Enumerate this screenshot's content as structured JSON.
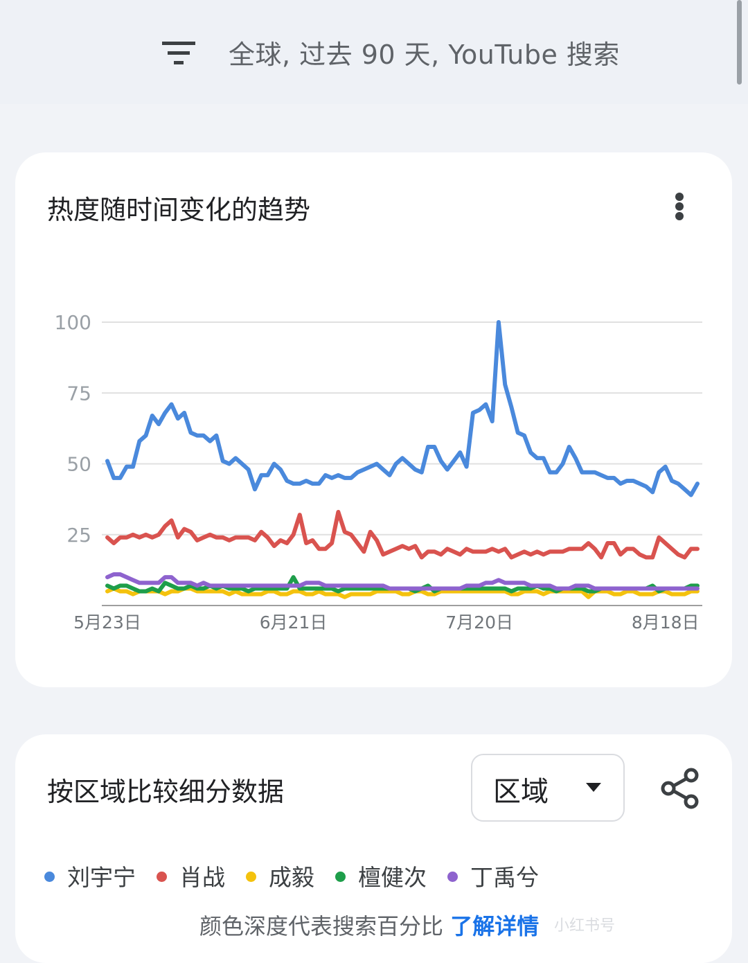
{
  "filter_bar": {
    "icon": "filter-icon",
    "text": "全球, 过去 90 天, YouTube 搜索"
  },
  "trend_card": {
    "title": "热度随时间变化的趋势",
    "menu_icon": "more-vert-icon"
  },
  "region_card": {
    "title": "按区域比较细分数据",
    "dropdown_value": "区域",
    "share_icon": "share-icon",
    "footnote_text": "颜色深度代表搜索百分比",
    "footnote_link": "了解详情"
  },
  "chart_data": {
    "type": "line",
    "yticks": [
      "100",
      "75",
      "50",
      "25"
    ],
    "ylim": [
      0,
      100
    ],
    "xticks": [
      "5月23日",
      "6月21日",
      "7月20日",
      "8月18日"
    ],
    "xrange": [
      "5月23日",
      "8月22日"
    ],
    "grid": true,
    "legend_position": "below chart",
    "series": [
      {
        "name": "刘宇宁",
        "color": "#4a89dc",
        "values": [
          51,
          45,
          45,
          49,
          49,
          58,
          60,
          67,
          64,
          68,
          71,
          66,
          68,
          61,
          60,
          60,
          58,
          60,
          51,
          50,
          52,
          50,
          48,
          41,
          46,
          46,
          50,
          48,
          44,
          43,
          43,
          44,
          43,
          43,
          46,
          45,
          46,
          45,
          45,
          47,
          48,
          49,
          50,
          48,
          46,
          50,
          52,
          50,
          48,
          47,
          56,
          56,
          51,
          48,
          51,
          54,
          49,
          68,
          69,
          71,
          65,
          100,
          78,
          70,
          61,
          60,
          54,
          52,
          52,
          47,
          47,
          50,
          56,
          52,
          47,
          47,
          47,
          46,
          45,
          45,
          43,
          44,
          44,
          43,
          42,
          40,
          47,
          49,
          44,
          43,
          41,
          39,
          43
        ]
      },
      {
        "name": "肖战",
        "color": "#d9534f",
        "values": [
          24,
          22,
          24,
          24,
          25,
          24,
          25,
          24,
          25,
          28,
          30,
          24,
          27,
          26,
          23,
          24,
          25,
          24,
          24,
          23,
          24,
          24,
          24,
          23,
          26,
          24,
          21,
          23,
          22,
          25,
          32,
          22,
          23,
          20,
          20,
          22,
          33,
          26,
          25,
          22,
          19,
          26,
          23,
          18,
          19,
          20,
          21,
          20,
          21,
          17,
          19,
          19,
          18,
          20,
          19,
          18,
          20,
          19,
          19,
          19,
          20,
          19,
          20,
          17,
          18,
          19,
          18,
          19,
          18,
          19,
          19,
          19,
          20,
          20,
          20,
          22,
          20,
          17,
          22,
          22,
          18,
          20,
          20,
          18,
          17,
          17,
          24,
          22,
          20,
          18,
          17,
          20,
          20
        ]
      },
      {
        "name": "成毅",
        "color": "#f4c20d",
        "values": [
          5,
          6,
          5,
          5,
          4,
          5,
          5,
          5,
          5,
          4,
          5,
          5,
          6,
          6,
          5,
          5,
          5,
          5,
          5,
          4,
          5,
          4,
          4,
          4,
          4,
          5,
          5,
          4,
          4,
          5,
          5,
          4,
          4,
          5,
          4,
          4,
          4,
          3,
          4,
          4,
          4,
          4,
          5,
          5,
          5,
          5,
          4,
          4,
          5,
          5,
          4,
          4,
          5,
          5,
          5,
          5,
          5,
          5,
          5,
          5,
          5,
          5,
          5,
          4,
          4,
          5,
          5,
          5,
          4,
          5,
          5,
          5,
          5,
          5,
          5,
          3,
          5,
          5,
          5,
          4,
          4,
          5,
          5,
          4,
          4,
          4,
          5,
          5,
          4,
          4,
          4,
          5,
          5
        ]
      },
      {
        "name": "檀健次",
        "color": "#1e9e4a",
        "values": [
          7,
          6,
          7,
          7,
          6,
          5,
          5,
          6,
          5,
          8,
          7,
          6,
          6,
          7,
          6,
          6,
          7,
          6,
          7,
          6,
          6,
          6,
          5,
          6,
          6,
          6,
          6,
          6,
          6,
          10,
          6,
          6,
          6,
          6,
          6,
          6,
          5,
          6,
          6,
          6,
          6,
          6,
          6,
          6,
          6,
          6,
          6,
          6,
          5,
          6,
          7,
          5,
          6,
          6,
          6,
          6,
          6,
          6,
          6,
          6,
          6,
          6,
          6,
          5,
          6,
          6,
          6,
          7,
          6,
          6,
          5,
          6,
          6,
          6,
          6,
          5,
          5,
          6,
          6,
          6,
          6,
          6,
          6,
          6,
          6,
          7,
          5,
          6,
          6,
          6,
          6,
          7,
          7
        ]
      },
      {
        "name": "丁禹兮",
        "color": "#8e63ce",
        "values": [
          10,
          11,
          11,
          10,
          9,
          8,
          8,
          8,
          8,
          10,
          10,
          8,
          8,
          8,
          7,
          8,
          7,
          7,
          7,
          7,
          7,
          7,
          7,
          7,
          7,
          7,
          7,
          7,
          7,
          7,
          7,
          8,
          8,
          8,
          7,
          7,
          7,
          7,
          7,
          7,
          7,
          7,
          7,
          7,
          6,
          6,
          6,
          6,
          6,
          6,
          6,
          6,
          6,
          6,
          6,
          6,
          7,
          7,
          7,
          8,
          8,
          9,
          8,
          8,
          8,
          8,
          7,
          7,
          7,
          7,
          6,
          6,
          6,
          7,
          7,
          7,
          6,
          6,
          6,
          6,
          6,
          6,
          6,
          6,
          6,
          6,
          6,
          6,
          6,
          6,
          6,
          6,
          6
        ]
      }
    ]
  },
  "watermark": "小红书号"
}
